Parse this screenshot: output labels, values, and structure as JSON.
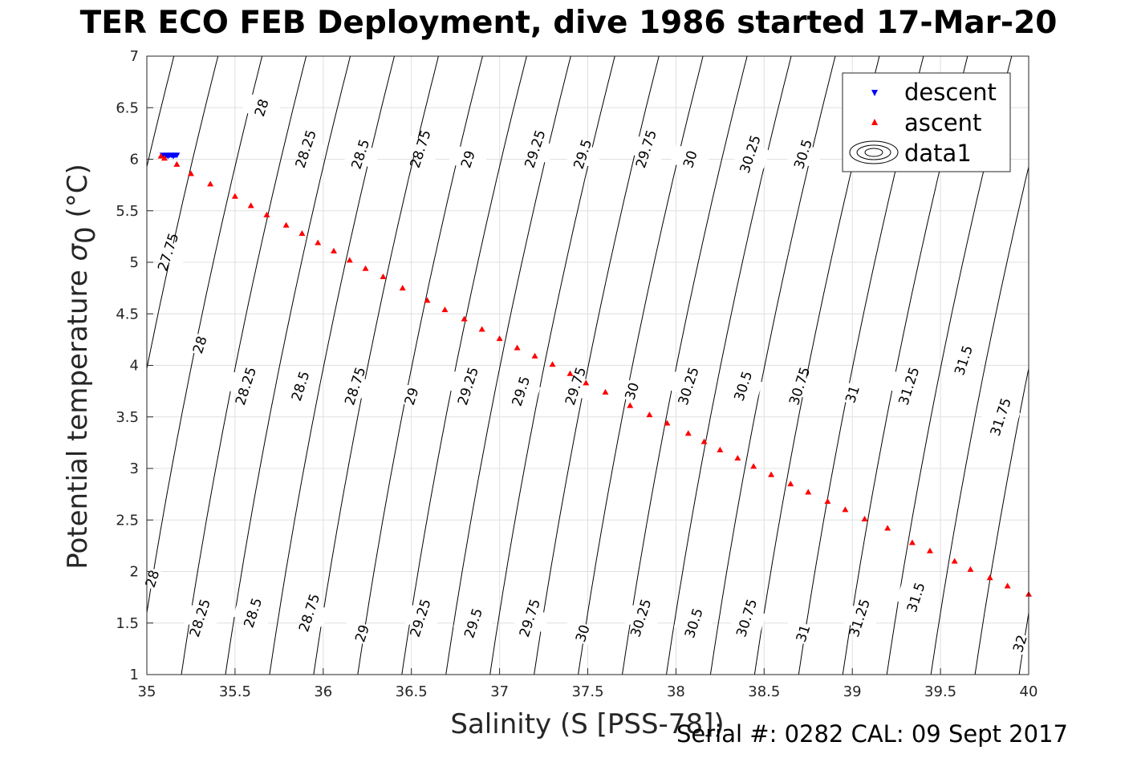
{
  "title": "TER ECO FEB Deployment, dive 1986 started 17-Mar-20",
  "footer": "Serial #: 0282  CAL: 09 Sept 2017",
  "chart_data": {
    "type": "scatter",
    "xlabel": "Salinity (S [PSS-78])",
    "ylabel_main": "Potential temperature ",
    "ylabel_sigma": "σ",
    "ylabel_sub": "0",
    "ylabel_unit": " (°C)",
    "xlim": [
      35,
      40
    ],
    "ylim": [
      1,
      7
    ],
    "x_ticks": [
      "35",
      "35.5",
      "36",
      "36.5",
      "37",
      "37.5",
      "38",
      "38.5",
      "39",
      "39.5",
      "40"
    ],
    "y_ticks": [
      "1",
      "1.5",
      "2",
      "2.5",
      "3",
      "3.5",
      "4",
      "4.5",
      "5",
      "5.5",
      "6",
      "6.5",
      "7"
    ],
    "grid": true,
    "legend": {
      "placement": "top-right",
      "entries": [
        "descent",
        "ascent",
        "data1"
      ]
    },
    "colors": {
      "descent": "#0000ff",
      "ascent": "#ff0000",
      "contour": "#000000",
      "grid": "#e0e0e0"
    },
    "series": [
      {
        "name": "descent",
        "marker": "triangle-down",
        "x": [
          35.09,
          35.1,
          35.11,
          35.12,
          35.13,
          35.14,
          35.15,
          35.16,
          35.17
        ],
        "y": [
          6.04,
          6.03,
          6.04,
          6.03,
          6.04,
          6.04,
          6.03,
          6.04,
          6.04
        ]
      },
      {
        "name": "ascent",
        "marker": "triangle-up",
        "x": [
          35.08,
          35.1,
          35.17,
          35.25,
          35.36,
          35.5,
          35.59,
          35.68,
          35.79,
          35.88,
          35.97,
          36.06,
          36.15,
          36.24,
          36.34,
          36.45,
          36.59,
          36.69,
          36.8,
          36.9,
          37.0,
          37.1,
          37.2,
          37.3,
          37.4,
          37.49,
          37.6,
          37.74,
          37.85,
          37.95,
          38.07,
          38.16,
          38.25,
          38.35,
          38.44,
          38.54,
          38.65,
          38.75,
          38.86,
          38.96,
          39.07,
          39.2,
          39.34,
          39.44,
          39.58,
          39.67,
          39.78,
          39.88,
          40.0
        ],
        "y": [
          6.03,
          6.01,
          5.95,
          5.86,
          5.76,
          5.64,
          5.55,
          5.46,
          5.36,
          5.28,
          5.19,
          5.11,
          5.02,
          4.94,
          4.86,
          4.75,
          4.63,
          4.54,
          4.45,
          4.35,
          4.26,
          4.17,
          4.09,
          4.01,
          3.92,
          3.83,
          3.74,
          3.61,
          3.52,
          3.44,
          3.34,
          3.26,
          3.18,
          3.1,
          3.02,
          2.94,
          2.85,
          2.77,
          2.68,
          2.6,
          2.51,
          2.42,
          2.28,
          2.2,
          2.1,
          2.02,
          1.94,
          1.86,
          1.78
        ]
      }
    ],
    "contour_labels": [
      {
        "text": "28",
        "x": 35.65,
        "y": 6.5
      },
      {
        "text": "28.25",
        "x": 35.9,
        "y": 6.1
      },
      {
        "text": "28.5",
        "x": 36.21,
        "y": 6.05
      },
      {
        "text": "28.75",
        "x": 36.55,
        "y": 6.1
      },
      {
        "text": "29",
        "x": 36.82,
        "y": 6.0
      },
      {
        "text": "29.25",
        "x": 37.2,
        "y": 6.1
      },
      {
        "text": "29.5",
        "x": 37.47,
        "y": 6.05
      },
      {
        "text": "29.75",
        "x": 37.83,
        "y": 6.1
      },
      {
        "text": "30",
        "x": 38.08,
        "y": 6.0
      },
      {
        "text": "30.25",
        "x": 38.42,
        "y": 6.05
      },
      {
        "text": "30.5",
        "x": 38.72,
        "y": 6.05
      },
      {
        "text": "27.75",
        "x": 35.12,
        "y": 5.1
      },
      {
        "text": "28",
        "x": 35.3,
        "y": 4.2
      },
      {
        "text": "28.25",
        "x": 35.56,
        "y": 3.8
      },
      {
        "text": "28.5",
        "x": 35.87,
        "y": 3.8
      },
      {
        "text": "28.75",
        "x": 36.18,
        "y": 3.8
      },
      {
        "text": "29",
        "x": 36.5,
        "y": 3.7
      },
      {
        "text": "29.25",
        "x": 36.82,
        "y": 3.8
      },
      {
        "text": "29.5",
        "x": 37.12,
        "y": 3.75
      },
      {
        "text": "29.75",
        "x": 37.43,
        "y": 3.8
      },
      {
        "text": "30",
        "x": 37.75,
        "y": 3.75
      },
      {
        "text": "30.25",
        "x": 38.07,
        "y": 3.8
      },
      {
        "text": "30.5",
        "x": 38.38,
        "y": 3.8
      },
      {
        "text": "30.75",
        "x": 38.7,
        "y": 3.8
      },
      {
        "text": "31",
        "x": 39.0,
        "y": 3.72
      },
      {
        "text": "31.25",
        "x": 39.32,
        "y": 3.8
      },
      {
        "text": "31.5",
        "x": 39.63,
        "y": 4.05
      },
      {
        "text": "31.75",
        "x": 39.84,
        "y": 3.5
      },
      {
        "text": "28",
        "x": 35.03,
        "y": 1.93
      },
      {
        "text": "28.25",
        "x": 35.3,
        "y": 1.55
      },
      {
        "text": "28.5",
        "x": 35.6,
        "y": 1.6
      },
      {
        "text": "28.75",
        "x": 35.92,
        "y": 1.6
      },
      {
        "text": "29",
        "x": 36.22,
        "y": 1.4
      },
      {
        "text": "29.25",
        "x": 36.55,
        "y": 1.55
      },
      {
        "text": "29.5",
        "x": 36.85,
        "y": 1.5
      },
      {
        "text": "29.75",
        "x": 37.17,
        "y": 1.55
      },
      {
        "text": "30",
        "x": 37.47,
        "y": 1.4
      },
      {
        "text": "30.25",
        "x": 37.8,
        "y": 1.55
      },
      {
        "text": "30.5",
        "x": 38.1,
        "y": 1.5
      },
      {
        "text": "30.75",
        "x": 38.4,
        "y": 1.55
      },
      {
        "text": "31",
        "x": 38.72,
        "y": 1.4
      },
      {
        "text": "31.25",
        "x": 39.04,
        "y": 1.55
      },
      {
        "text": "31.5",
        "x": 39.36,
        "y": 1.75
      },
      {
        "text": "32",
        "x": 39.95,
        "y": 1.3
      }
    ]
  }
}
